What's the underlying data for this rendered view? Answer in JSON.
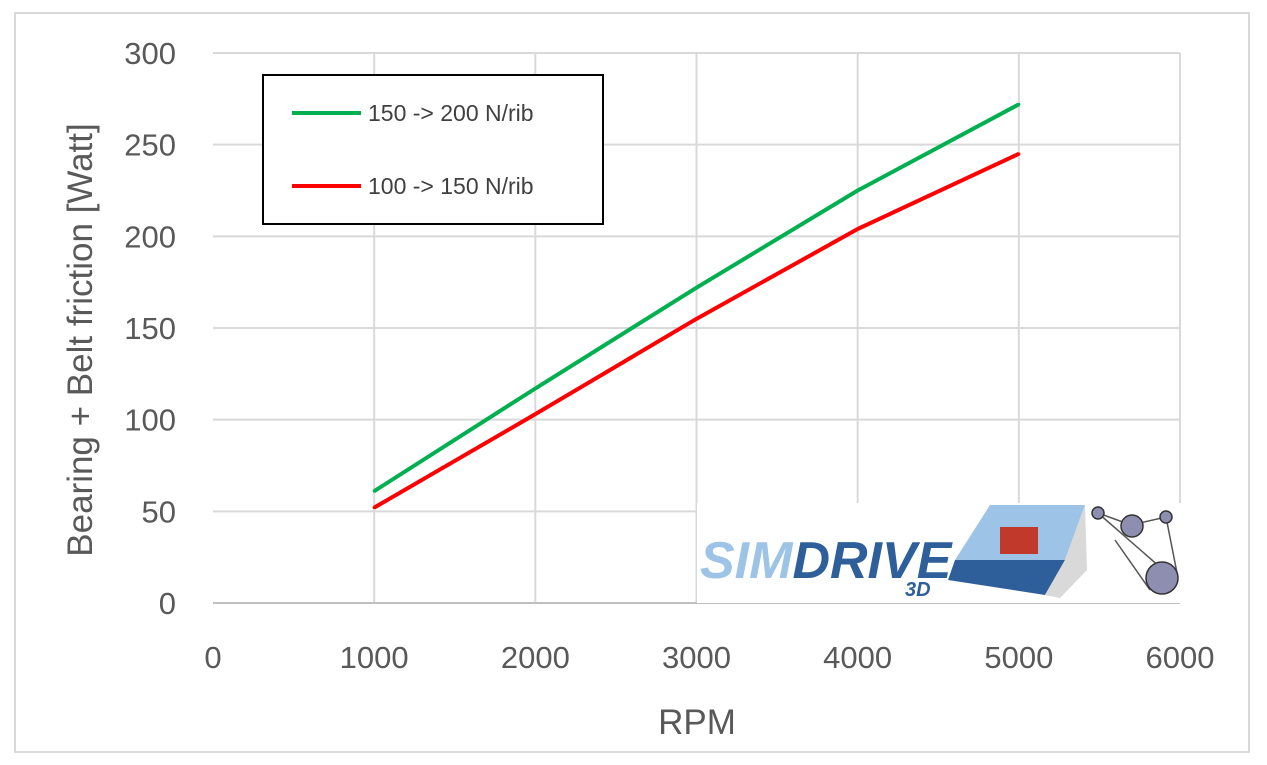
{
  "chart_data": {
    "type": "line",
    "xlabel": "RPM",
    "ylabel": "Bearing + Belt friction [Watt]",
    "xlim": [
      0,
      6000
    ],
    "ylim": [
      0,
      300
    ],
    "xticks": [
      0,
      1000,
      2000,
      3000,
      4000,
      5000,
      6000
    ],
    "yticks": [
      0,
      50,
      100,
      150,
      200,
      250,
      300
    ],
    "grid": true,
    "legend_position": "top-left",
    "series": [
      {
        "name": "150 -> 200 N/rib",
        "color": "#00b050",
        "x": [
          1000,
          2000,
          3000,
          4000,
          5000
        ],
        "y": [
          61,
          117,
          172,
          225,
          272
        ]
      },
      {
        "name": "100 -> 150 N/rib",
        "color": "#ff0000",
        "x": [
          1000,
          2000,
          3000,
          4000,
          5000
        ],
        "y": [
          52,
          103,
          155,
          204,
          245
        ]
      }
    ]
  },
  "logo": {
    "text_main_light": "SIM",
    "text_main_dark": "DRIVE",
    "text_sub": "3D",
    "colors": {
      "light": "#9dc3e6",
      "dark": "#2e5f9a",
      "accent": "#c0392b"
    }
  }
}
